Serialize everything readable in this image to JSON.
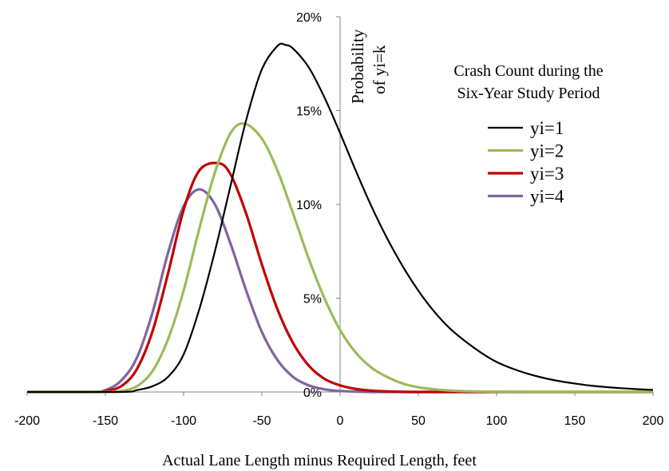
{
  "chart_data": {
    "type": "line",
    "xlabel": "Actual Lane Length minus Required Length, feet",
    "ylabel": [
      "Probability",
      "of yi=k"
    ],
    "xlim": [
      -200,
      200
    ],
    "ylim": [
      0,
      0.2
    ],
    "x_ticks": [
      -200,
      -150,
      -100,
      -50,
      0,
      50,
      100,
      150,
      200
    ],
    "x_tick_labels": [
      "-200",
      "-150",
      "-100",
      "-50",
      "0",
      "50",
      "100",
      "150",
      "200"
    ],
    "y_ticks": [
      0,
      0.05,
      0.1,
      0.15,
      0.2
    ],
    "y_tick_labels": [
      "0%",
      "5%",
      "10%",
      "15%",
      "20%"
    ],
    "legend": {
      "title": [
        "Crash Count during the",
        "Six-Year Study Period"
      ],
      "placement": "top-right"
    },
    "grid": false,
    "series": [
      {
        "name": "yi=1",
        "color": "#000000",
        "x": [
          -200,
          -140,
          -130,
          -120,
          -110,
          -100,
          -90,
          -80,
          -70,
          -60,
          -50,
          -40,
          -35,
          -30,
          -20,
          -10,
          0,
          10,
          20,
          30,
          40,
          50,
          60,
          70,
          80,
          90,
          100,
          110,
          120,
          130,
          140,
          150,
          160,
          170,
          180,
          190,
          200
        ],
        "y": [
          0,
          0,
          0.001,
          0.003,
          0.008,
          0.02,
          0.044,
          0.075,
          0.11,
          0.145,
          0.172,
          0.1845,
          0.185,
          0.183,
          0.173,
          0.157,
          0.138,
          0.118,
          0.099,
          0.082,
          0.067,
          0.054,
          0.043,
          0.034,
          0.027,
          0.021,
          0.016,
          0.0125,
          0.0097,
          0.0075,
          0.0058,
          0.0045,
          0.0034,
          0.0026,
          0.002,
          0.0015,
          0.0011
        ]
      },
      {
        "name": "yi=2",
        "color": "#9bbb59",
        "x": [
          -200,
          -150,
          -140,
          -130,
          -120,
          -110,
          -100,
          -90,
          -80,
          -70,
          -61,
          -50,
          -40,
          -30,
          -20,
          -10,
          0,
          10,
          20,
          30,
          40,
          50,
          60,
          70,
          80,
          100,
          120,
          150,
          200
        ],
        "y": [
          0,
          0,
          0.0005,
          0.003,
          0.011,
          0.028,
          0.054,
          0.087,
          0.117,
          0.138,
          0.143,
          0.135,
          0.118,
          0.095,
          0.071,
          0.05,
          0.033,
          0.021,
          0.013,
          0.008,
          0.0045,
          0.0025,
          0.0014,
          0.0008,
          0.0004,
          0.0001,
          0,
          0,
          0
        ]
      },
      {
        "name": "yi=3",
        "color": "#c00000",
        "x": [
          -200,
          -155,
          -150,
          -140,
          -130,
          -120,
          -110,
          -100,
          -90,
          -78,
          -70,
          -60,
          -50,
          -40,
          -30,
          -20,
          -10,
          0,
          10,
          20,
          30,
          50,
          100,
          200
        ],
        "y": [
          0,
          0,
          0.0005,
          0.003,
          0.012,
          0.032,
          0.063,
          0.097,
          0.118,
          0.122,
          0.116,
          0.095,
          0.068,
          0.044,
          0.026,
          0.014,
          0.007,
          0.0035,
          0.0016,
          0.0007,
          0.0003,
          0,
          0,
          0
        ]
      },
      {
        "name": "yi=4",
        "color": "#7f64a0",
        "x": [
          -200,
          -160,
          -150,
          -140,
          -130,
          -120,
          -110,
          -100,
          -90,
          -80,
          -70,
          -60,
          -50,
          -40,
          -30,
          -20,
          -10,
          0,
          20,
          50,
          200
        ],
        "y": [
          0,
          0,
          0.001,
          0.006,
          0.018,
          0.042,
          0.074,
          0.099,
          0.108,
          0.1,
          0.079,
          0.054,
          0.032,
          0.017,
          0.008,
          0.0035,
          0.0014,
          0.0005,
          0,
          0,
          0
        ]
      }
    ]
  }
}
